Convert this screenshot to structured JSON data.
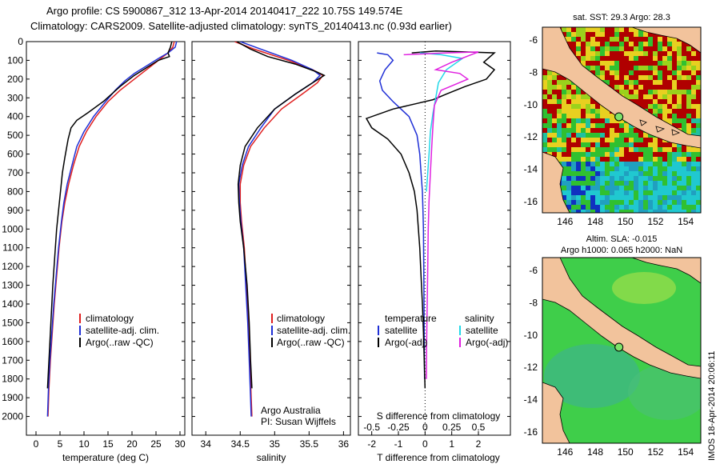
{
  "title": {
    "line1": "Argo profile: CS 5900867_312 13-Apr-2014 20140417_222 10.75S 149.574E",
    "line2": "Climatology: CARS2009. Satellite-adjusted climatology: synTS_20140413.nc (0.93d earlier)"
  },
  "colors": {
    "climatology": "#e02020",
    "satellite": "#1f2fd6",
    "argo": "#000000",
    "sat_salinity": "#22d8e8",
    "argo_salinity": "#e020e0"
  },
  "legend": {
    "climatology": "climatology",
    "satellite_adj": "satellite-adj. clim.",
    "argo": "Argo(..raw -QC)",
    "diff_temperature": "temperature",
    "diff_salinity": "salinity",
    "diff_satellite": "satellite",
    "diff_argo": "Argo(-adj)"
  },
  "credits": {
    "line1": "Argo Australia",
    "line2": "PI: Susan Wijffels"
  },
  "timestamp": "IMOS 18-Apr-2014 20:06:11",
  "maps": {
    "sst_label": "sat. SST: 29.3 Argo: 28.3",
    "sla_label1": "Altim. SLA: -0.015",
    "sla_label2": "Argo h1000: 0.065 h2000: NaN",
    "lat_ticks": [
      "-6",
      "-8",
      "-10",
      "-12",
      "-14",
      "-16"
    ],
    "lon_ticks": [
      "146",
      "148",
      "150",
      "152",
      "154"
    ],
    "lat_values": [
      -6,
      -8,
      -10,
      -12,
      -14,
      -16
    ],
    "lon_values": [
      146,
      148,
      150,
      152,
      154
    ],
    "lat_range": [
      -16.7,
      -5.2
    ],
    "lon_range": [
      144.5,
      155
    ],
    "float_position": {
      "lon": 149.574,
      "lat": -10.75
    }
  },
  "chart_data": [
    {
      "type": "line",
      "xlabel": "temperature (deg C)",
      "ylabel": "",
      "x_ticks": [
        0,
        5,
        10,
        15,
        20,
        25,
        30
      ],
      "xlim": [
        -2,
        31
      ],
      "ylim": [
        2100,
        0
      ],
      "y_ticks": [
        0,
        100,
        200,
        300,
        400,
        500,
        600,
        700,
        800,
        900,
        1000,
        1100,
        1200,
        1300,
        1400,
        1500,
        1600,
        1700,
        1800,
        1900,
        2000
      ],
      "series": [
        {
          "name": "climatology",
          "color_key": "climatology",
          "points": [
            [
              28.8,
              0
            ],
            [
              28.5,
              30
            ],
            [
              27.5,
              60
            ],
            [
              26,
              90
            ],
            [
              24,
              130
            ],
            [
              22,
              170
            ],
            [
              20,
              210
            ],
            [
              17.5,
              260
            ],
            [
              15,
              320
            ],
            [
              12.5,
              400
            ],
            [
              10.5,
              480
            ],
            [
              9,
              560
            ],
            [
              7.8,
              660
            ],
            [
              6.8,
              760
            ],
            [
              6,
              860
            ],
            [
              5.4,
              960
            ],
            [
              4.8,
              1100
            ],
            [
              4.3,
              1250
            ],
            [
              3.8,
              1400
            ],
            [
              3.4,
              1550
            ],
            [
              3,
              1700
            ],
            [
              2.7,
              1850
            ],
            [
              2.5,
              2000
            ]
          ]
        },
        {
          "name": "satellite-adj. clim.",
          "color_key": "satellite",
          "points": [
            [
              29.3,
              0
            ],
            [
              29,
              30
            ],
            [
              27.5,
              60
            ],
            [
              25.5,
              90
            ],
            [
              23,
              130
            ],
            [
              20.5,
              170
            ],
            [
              18.5,
              210
            ],
            [
              16.5,
              260
            ],
            [
              14.5,
              320
            ],
            [
              12,
              400
            ],
            [
              10,
              480
            ],
            [
              8.5,
              560
            ],
            [
              7.5,
              660
            ],
            [
              6.5,
              760
            ],
            [
              5.8,
              860
            ],
            [
              5.3,
              960
            ],
            [
              4.7,
              1100
            ],
            [
              4.2,
              1250
            ],
            [
              3.7,
              1400
            ],
            [
              3.3,
              1550
            ],
            [
              2.9,
              1700
            ],
            [
              2.6,
              1850
            ],
            [
              2.4,
              2000
            ]
          ]
        },
        {
          "name": "Argo(..raw -QC)",
          "color_key": "argo",
          "points": [
            [
              28.3,
              0
            ],
            [
              28,
              30
            ],
            [
              27.5,
              60
            ],
            [
              27.8,
              80
            ],
            [
              25.5,
              100
            ],
            [
              23,
              140
            ],
            [
              20.5,
              180
            ],
            [
              17.5,
              240
            ],
            [
              14,
              320
            ],
            [
              10.8,
              380
            ],
            [
              8.5,
              420
            ],
            [
              7.3,
              460
            ],
            [
              6.7,
              520
            ],
            [
              6,
              620
            ],
            [
              5.5,
              700
            ],
            [
              5.1,
              800
            ],
            [
              4.7,
              900
            ],
            [
              4.3,
              1000
            ],
            [
              3.9,
              1150
            ],
            [
              3.5,
              1300
            ],
            [
              3.2,
              1450
            ],
            [
              2.9,
              1600
            ],
            [
              2.6,
              1750
            ],
            [
              2.4,
              1850
            ]
          ]
        }
      ]
    },
    {
      "type": "line",
      "xlabel": "salinity",
      "ylabel": "",
      "x_ticks": [
        34,
        34.5,
        35,
        35.5,
        36
      ],
      "xlim": [
        33.8,
        36.1
      ],
      "ylim": [
        2100,
        0
      ],
      "series": [
        {
          "name": "climatology",
          "color_key": "climatology",
          "points": [
            [
              34.42,
              0
            ],
            [
              34.7,
              40
            ],
            [
              35.2,
              100
            ],
            [
              35.55,
              150
            ],
            [
              35.7,
              180
            ],
            [
              35.62,
              220
            ],
            [
              35.4,
              280
            ],
            [
              35.1,
              360
            ],
            [
              34.85,
              460
            ],
            [
              34.65,
              560
            ],
            [
              34.55,
              660
            ],
            [
              34.5,
              760
            ],
            [
              34.5,
              860
            ],
            [
              34.52,
              960
            ],
            [
              34.56,
              1100
            ],
            [
              34.59,
              1300
            ],
            [
              34.62,
              1500
            ],
            [
              34.64,
              1700
            ],
            [
              34.66,
              1900
            ],
            [
              34.67,
              2000
            ]
          ]
        },
        {
          "name": "satellite-adj. clim.",
          "color_key": "satellite",
          "points": [
            [
              34.5,
              0
            ],
            [
              34.8,
              40
            ],
            [
              35.25,
              100
            ],
            [
              35.55,
              150
            ],
            [
              35.66,
              180
            ],
            [
              35.55,
              220
            ],
            [
              35.3,
              280
            ],
            [
              35.0,
              360
            ],
            [
              34.8,
              460
            ],
            [
              34.62,
              560
            ],
            [
              34.53,
              660
            ],
            [
              34.48,
              760
            ],
            [
              34.49,
              860
            ],
            [
              34.51,
              960
            ],
            [
              34.55,
              1100
            ],
            [
              34.58,
              1300
            ],
            [
              34.61,
              1500
            ],
            [
              34.63,
              1700
            ],
            [
              34.65,
              1900
            ],
            [
              34.66,
              2000
            ]
          ]
        },
        {
          "name": "Argo(..raw -QC)",
          "color_key": "argo",
          "points": [
            [
              34.45,
              0
            ],
            [
              34.65,
              40
            ],
            [
              34.9,
              80
            ],
            [
              35.3,
              120
            ],
            [
              35.6,
              160
            ],
            [
              35.72,
              180
            ],
            [
              35.55,
              220
            ],
            [
              35.3,
              280
            ],
            [
              35.0,
              360
            ],
            [
              34.75,
              460
            ],
            [
              34.57,
              560
            ],
            [
              34.5,
              660
            ],
            [
              34.47,
              760
            ],
            [
              34.48,
              860
            ],
            [
              34.5,
              960
            ],
            [
              34.55,
              1100
            ],
            [
              34.6,
              1300
            ],
            [
              34.63,
              1500
            ],
            [
              34.65,
              1700
            ],
            [
              34.67,
              1850
            ]
          ]
        }
      ]
    },
    {
      "type": "line",
      "xlabel": "T difference from climatology",
      "ylabel": "",
      "secondary_xlabel": "S difference from climatology",
      "x_ticks": [
        -2,
        -1,
        0,
        1,
        2
      ],
      "secondary_x_ticks": [
        "-0.5",
        "-0.25",
        "0",
        "0.25",
        "0.5"
      ],
      "secondary_x_values": [
        -0.5,
        -0.25,
        0,
        0.25,
        0.5
      ],
      "xlim": [
        -2.5,
        3.2
      ],
      "ylim": [
        2100,
        0
      ],
      "series": [
        {
          "name": "temperature satellite",
          "color_key": "satellite",
          "points": [
            [
              -1.8,
              60
            ],
            [
              -1.4,
              70
            ],
            [
              -1.2,
              100
            ],
            [
              -1.5,
              150
            ],
            [
              -1.7,
              210
            ],
            [
              -1.6,
              260
            ],
            [
              -1.2,
              320
            ],
            [
              -0.6,
              400
            ],
            [
              -0.3,
              500
            ],
            [
              -0.2,
              600
            ],
            [
              -0.15,
              700
            ],
            [
              -0.1,
              800
            ],
            [
              -0.08,
              900
            ],
            [
              -0.06,
              1000
            ],
            [
              -0.05,
              1200
            ],
            [
              -0.04,
              1400
            ],
            [
              -0.03,
              1600
            ],
            [
              -0.02,
              1800
            ]
          ]
        },
        {
          "name": "temperature Argo(-adj)",
          "color_key": "argo",
          "points": [
            [
              -0.5,
              60
            ],
            [
              0.4,
              50
            ],
            [
              1.5,
              55
            ],
            [
              2.6,
              60
            ],
            [
              2.2,
              110
            ],
            [
              2.6,
              150
            ],
            [
              2.3,
              200
            ],
            [
              1.5,
              240
            ],
            [
              0.8,
              280
            ],
            [
              0.3,
              310
            ],
            [
              -0.3,
              330
            ],
            [
              -1.2,
              360
            ],
            [
              -2.2,
              410
            ],
            [
              -2.0,
              460
            ],
            [
              -1.4,
              520
            ],
            [
              -0.9,
              600
            ],
            [
              -0.6,
              700
            ],
            [
              -0.4,
              800
            ],
            [
              -0.3,
              900
            ],
            [
              -0.25,
              1000
            ],
            [
              -0.2,
              1100
            ],
            [
              -0.15,
              1250
            ],
            [
              -0.1,
              1400
            ],
            [
              -0.06,
              1550
            ],
            [
              -0.03,
              1700
            ],
            [
              0,
              1850
            ]
          ]
        },
        {
          "name": "salinity satellite",
          "color_key": "sat_salinity",
          "points": [
            [
              -0.2,
              60
            ],
            [
              0.6,
              70
            ],
            [
              1.4,
              90
            ],
            [
              0.8,
              150
            ],
            [
              0.5,
              220
            ],
            [
              0.4,
              300
            ],
            [
              0.3,
              380
            ],
            [
              0.2,
              480
            ],
            [
              0.15,
              600
            ],
            [
              0.1,
              700
            ],
            [
              0.05,
              800
            ]
          ]
        },
        {
          "name": "salinity Argo(-adj)",
          "color_key": "argo_salinity",
          "points": [
            [
              -0.8,
              70
            ],
            [
              0.8,
              60
            ],
            [
              2.0,
              55
            ],
            [
              1.0,
              110
            ],
            [
              0.4,
              150
            ],
            [
              1.3,
              170
            ],
            [
              1.6,
              200
            ],
            [
              0.6,
              260
            ],
            [
              0.35,
              340
            ],
            [
              0.3,
              440
            ],
            [
              0.25,
              560
            ],
            [
              0.2,
              700
            ],
            [
              0.15,
              850
            ],
            [
              0.12,
              1000
            ],
            [
              0.1,
              1200
            ],
            [
              0.08,
              1400
            ],
            [
              0.06,
              1600
            ],
            [
              0.05,
              1800
            ]
          ]
        }
      ]
    }
  ]
}
